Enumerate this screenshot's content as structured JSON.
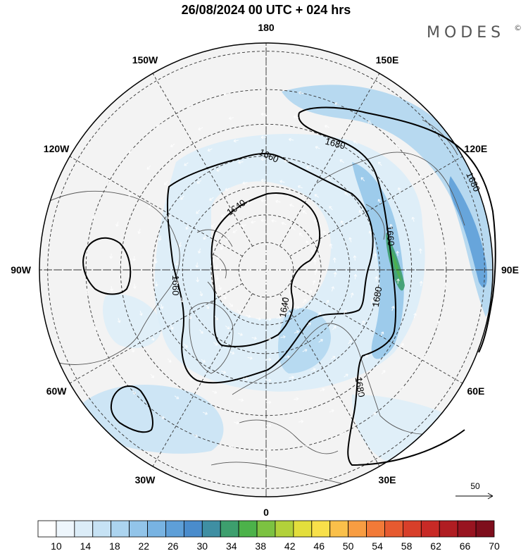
{
  "title": "26/08/2024  00 UTC  + 024 hrs",
  "brand": {
    "name": "MODES",
    "mark": "©"
  },
  "longitude_labels": [
    {
      "text": "180",
      "lon": 180
    },
    {
      "text": "150E",
      "lon": 150
    },
    {
      "text": "120E",
      "lon": 120
    },
    {
      "text": "90E",
      "lon": 90
    },
    {
      "text": "60E",
      "lon": 60
    },
    {
      "text": "30E",
      "lon": 30
    },
    {
      "text": "0",
      "lon": 0
    },
    {
      "text": "30W",
      "lon": -30
    },
    {
      "text": "60W",
      "lon": -60
    },
    {
      "text": "90W",
      "lon": -90
    },
    {
      "text": "120W",
      "lon": -120
    },
    {
      "text": "150W",
      "lon": -150
    }
  ],
  "latitude_circles": [
    80,
    70,
    60,
    50,
    40,
    30,
    20
  ],
  "contour_levels": [
    "1640",
    "1660",
    "1680"
  ],
  "reference_vector": {
    "label": "50"
  },
  "colorbar": {
    "labels": [
      "10",
      "14",
      "18",
      "22",
      "26",
      "30",
      "34",
      "38",
      "42",
      "46",
      "50",
      "54",
      "58",
      "62",
      "66",
      "70"
    ],
    "colors": [
      "#ffffff",
      "#eef6fc",
      "#dcedf8",
      "#c6e2f4",
      "#acd4ef",
      "#92c4e9",
      "#78b3e2",
      "#5e9fd8",
      "#4a8ccc",
      "#3f8fa3",
      "#3d9f6e",
      "#4cb24a",
      "#7cc241",
      "#b2d13a",
      "#e3de3c",
      "#f8e04a",
      "#fac04a",
      "#f89d42",
      "#f27a38",
      "#e65a30",
      "#d83f2a",
      "#c82a26",
      "#b01d22",
      "#981420",
      "#7e0e1c"
    ]
  }
}
